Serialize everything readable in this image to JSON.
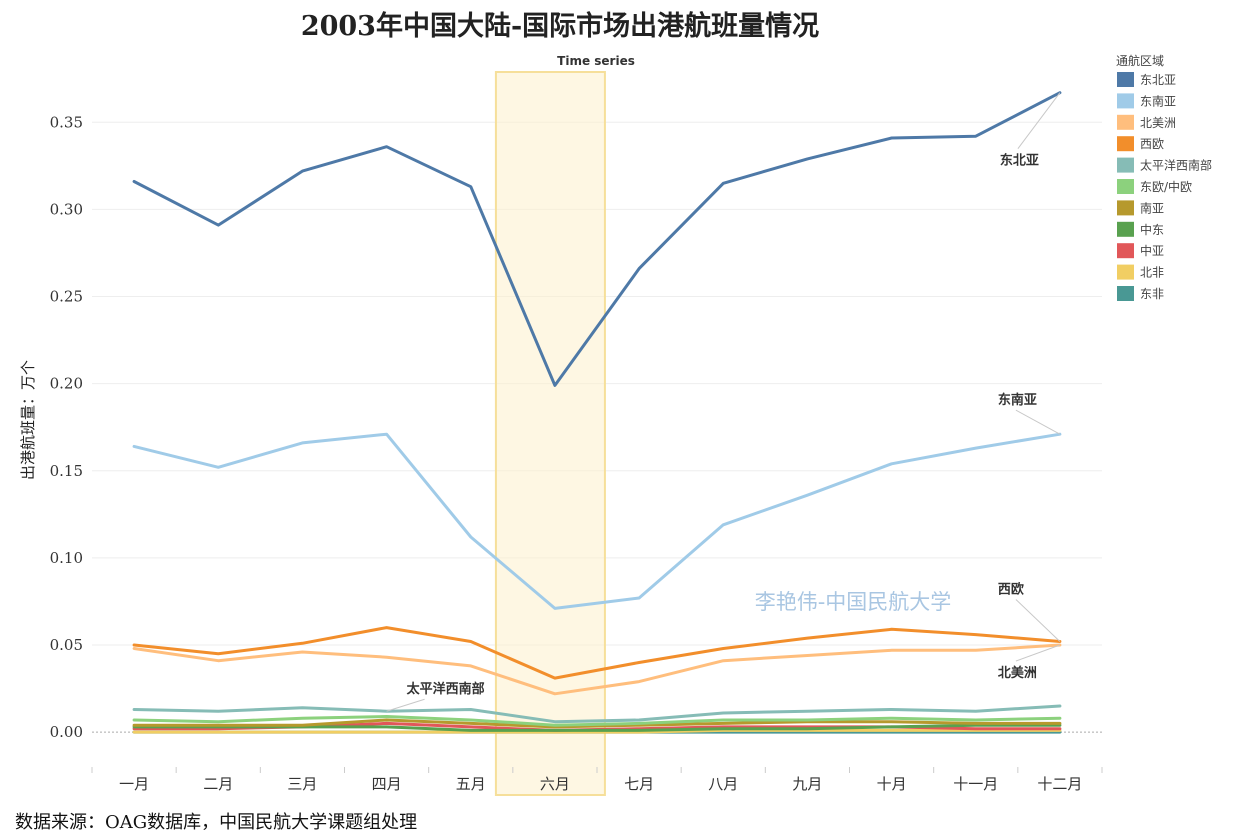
{
  "chart_data": {
    "type": "line",
    "title": "2003年中国大陆-国际市场出港航班量情况",
    "subtitle": "Time series",
    "ylabel": "出港航班量：万个",
    "xlabel": "",
    "categories": [
      "一月",
      "二月",
      "三月",
      "四月",
      "五月",
      "六月",
      "七月",
      "八月",
      "九月",
      "十月",
      "十一月",
      "十二月"
    ],
    "ylim": [
      -0.02,
      0.38
    ],
    "yticks": [
      0.0,
      0.05,
      0.1,
      0.15,
      0.2,
      0.25,
      0.3,
      0.35
    ],
    "grid": true,
    "highlight": {
      "category": "六月"
    },
    "legend": {
      "title": "通航区域",
      "placement": "right"
    },
    "series": [
      {
        "name": "东北亚",
        "color": "#4e79a7",
        "values": [
          0.316,
          0.291,
          0.322,
          0.336,
          0.313,
          0.199,
          0.266,
          0.315,
          0.329,
          0.341,
          0.342,
          0.367
        ]
      },
      {
        "name": "东南亚",
        "color": "#a0cbe8",
        "values": [
          0.164,
          0.152,
          0.166,
          0.171,
          0.112,
          0.071,
          0.077,
          0.119,
          0.136,
          0.154,
          0.163,
          0.171
        ]
      },
      {
        "name": "北美洲",
        "color": "#ffbe7d",
        "values": [
          0.048,
          0.041,
          0.046,
          0.043,
          0.038,
          0.022,
          0.029,
          0.041,
          0.044,
          0.047,
          0.047,
          0.05
        ]
      },
      {
        "name": "西欧",
        "color": "#f28e2b",
        "values": [
          0.05,
          0.045,
          0.051,
          0.06,
          0.052,
          0.031,
          0.04,
          0.048,
          0.054,
          0.059,
          0.056,
          0.052
        ]
      },
      {
        "name": "太平洋西南部",
        "color": "#86bcb6",
        "values": [
          0.013,
          0.012,
          0.014,
          0.012,
          0.013,
          0.006,
          0.007,
          0.011,
          0.012,
          0.013,
          0.012,
          0.015
        ]
      },
      {
        "name": "东欧/中欧",
        "color": "#8cd17d",
        "values": [
          0.007,
          0.006,
          0.008,
          0.009,
          0.007,
          0.004,
          0.005,
          0.007,
          0.007,
          0.008,
          0.007,
          0.008
        ]
      },
      {
        "name": "南亚",
        "color": "#b6992d",
        "values": [
          0.004,
          0.004,
          0.004,
          0.007,
          0.005,
          0.003,
          0.004,
          0.005,
          0.006,
          0.006,
          0.005,
          0.005
        ]
      },
      {
        "name": "中东",
        "color": "#59a14f",
        "values": [
          0.003,
          0.003,
          0.003,
          0.003,
          0.001,
          0.001,
          0.001,
          0.002,
          0.002,
          0.003,
          0.004,
          0.004
        ]
      },
      {
        "name": "中亚",
        "color": "#e15759",
        "values": [
          0.002,
          0.002,
          0.003,
          0.005,
          0.003,
          0.001,
          0.002,
          0.003,
          0.003,
          0.003,
          0.002,
          0.002
        ]
      },
      {
        "name": "北非",
        "color": "#f1ce63",
        "values": [
          0.0,
          0.0,
          0.0,
          0.0,
          0.0,
          0.0,
          0.0,
          0.001,
          0.001,
          0.001,
          0.001,
          0.001
        ]
      },
      {
        "name": "东非",
        "color": "#499894",
        "values": [
          0.0,
          0.0,
          0.0,
          0.0,
          0.0,
          0.0,
          0.0,
          0.0,
          0.0,
          0.0,
          0.0,
          0.0
        ]
      }
    ],
    "annotations": [
      {
        "text": "东北亚",
        "series": "东北亚",
        "category": "十二月",
        "dx": -60,
        "dy": 72
      },
      {
        "text": "东南亚",
        "series": "东南亚",
        "category": "十二月",
        "dx": -62,
        "dy": -30
      },
      {
        "text": "西欧",
        "series": "西欧",
        "category": "十二月",
        "dx": -62,
        "dy": -48
      },
      {
        "text": "北美洲",
        "series": "北美洲",
        "category": "十二月",
        "dx": -62,
        "dy": 32
      },
      {
        "text": "太平洋西南部",
        "series": "太平洋西南部",
        "category": "四月",
        "dx": 20,
        "dy": -18
      }
    ]
  },
  "watermark": "李艳伟-中国民航大学",
  "source": "数据来源：OAG数据库，中国民航大学课题组处理"
}
